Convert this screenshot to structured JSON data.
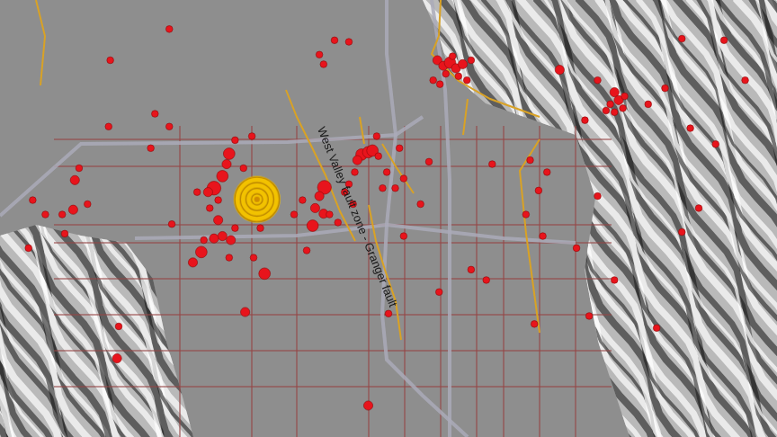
{
  "chart_data": {
    "type": "scatter",
    "tick_labels": false,
    "grid": false,
    "xlim": [
      0,
      864
    ],
    "ylim": [
      0,
      486
    ],
    "annotations": [
      "West Valley fault zone - Granger fault"
    ],
    "series": [
      {
        "color": "#e8141c",
        "marker": "circle",
        "x": [
          490,
          497,
          505,
          512,
          520,
          500,
          515,
          525,
          485,
          530,
          493,
          508,
          700,
          705,
          695,
          710,
          700,
          712,
          690,
          172,
          368,
          385,
          350,
          355,
          102,
          635,
          680,
          780,
          830,
          855,
          740,
          760,
          243,
          235,
          225,
          218,
          240,
          260,
          270,
          250,
          230,
          235,
          225,
          245,
          250,
          210,
          200,
          265,
          280,
          285,
          262,
          220,
          230,
          255,
          205,
          213,
          243,
          272,
          60,
          65,
          58,
          45,
          25,
          10,
          75,
          100,
          155,
          172,
          150,
          175,
          112,
          110,
          5,
          48,
          356,
          350,
          345,
          355,
          362,
          342,
          330,
          320,
          372,
          380,
          390,
          400,
          408,
          413,
          395,
          420,
          430,
          425,
          440,
          450,
          418,
          445,
          385,
          392,
          335,
          530,
          548,
          492,
          595,
          610,
          620,
          615,
          655,
          670,
          680,
          605,
          408,
          432,
          450,
          470,
          480,
          555,
          600,
          780,
          800,
          700,
          750,
          790,
          820,
          665
        ],
        "y": [
          45,
          52,
          48,
          55,
          50,
          62,
          65,
          70,
          70,
          45,
          75,
          40,
          85,
          95,
          100,
          105,
          110,
          90,
          108,
          6,
          20,
          22,
          38,
          50,
          45,
          57,
          70,
          18,
          20,
          70,
          100,
          80,
          162,
          190,
          205,
          210,
          175,
          180,
          140,
          145,
          245,
          265,
          268,
          270,
          255,
          285,
          298,
          235,
          255,
          312,
          360,
          230,
          220,
          220,
          210,
          270,
          292,
          292,
          195,
          180,
          232,
          238,
          238,
          220,
          225,
          128,
          112,
          128,
          155,
          250,
          378,
          418,
          280,
          262,
          204,
          215,
          230,
          237,
          238,
          252,
          220,
          238,
          248,
          210,
          225,
          163,
          160,
          158,
          170,
          165,
          185,
          205,
          205,
          193,
          140,
          155,
          200,
          185,
          283,
          307,
          320,
          335,
          238,
          208,
          185,
          265,
          280,
          365,
          215,
          375,
          477,
          362,
          265,
          225,
          172,
          175,
          170,
          260,
          230,
          320,
          380,
          130,
          150,
          120
        ],
        "size": [
          3,
          3,
          4,
          3,
          3,
          2,
          2,
          2,
          2,
          2,
          2,
          2,
          3,
          3,
          2,
          2,
          2,
          2,
          2,
          2,
          2,
          2,
          2,
          2,
          2,
          3,
          2,
          2,
          2,
          2,
          2,
          2,
          4,
          4,
          5,
          3,
          3,
          2,
          2,
          2,
          3,
          3,
          3,
          3,
          2,
          4,
          3,
          2,
          2,
          4,
          3,
          2,
          2,
          2,
          2,
          2,
          2,
          2,
          3,
          2,
          3,
          2,
          2,
          2,
          2,
          2,
          2,
          2,
          2,
          2,
          2,
          3,
          2,
          2,
          5,
          3,
          3,
          3,
          2,
          4,
          2,
          2,
          2,
          2,
          2,
          4,
          4,
          4,
          3,
          2,
          2,
          2,
          2,
          2,
          2,
          2,
          2,
          2,
          2,
          2,
          2,
          2,
          2,
          2,
          2,
          2,
          2,
          2,
          2,
          2,
          3,
          2,
          2,
          2,
          2,
          2,
          2,
          2,
          2,
          2,
          2,
          2,
          2,
          2
        ]
      },
      {
        "color": "#f2c200",
        "marker": "target",
        "x": [
          276
        ],
        "y": [
          219
        ],
        "size": [
          10
        ]
      }
    ]
  }
}
